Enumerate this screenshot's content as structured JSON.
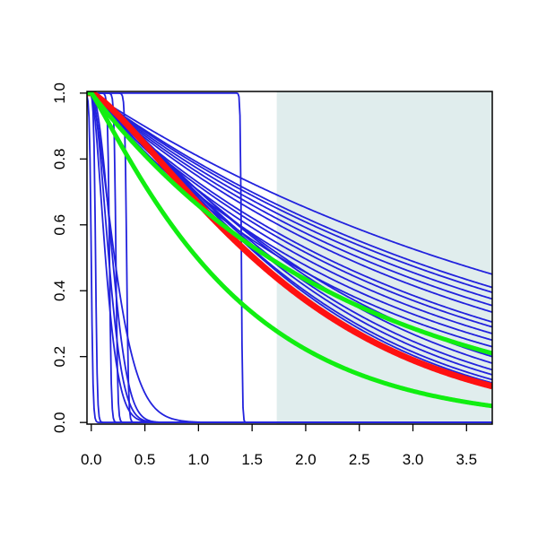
{
  "chart_data": {
    "type": "line",
    "title": "",
    "xlabel": "",
    "ylabel": "",
    "xlim": [
      -0.04,
      3.74
    ],
    "ylim": [
      -0.005,
      1.005
    ],
    "xticks": [
      "0.0",
      "0.5",
      "1.0",
      "1.5",
      "2.0",
      "2.5",
      "3.0",
      "3.5"
    ],
    "yticks": [
      "0.0",
      "0.2",
      "0.4",
      "0.6",
      "0.8",
      "1.0"
    ],
    "grid": false,
    "legend": "none",
    "shaded_region": {
      "x_from": 1.73,
      "x_to": 3.74,
      "color": "#e0eded"
    },
    "colors": {
      "blue": "#2222dd",
      "red": "#ff1111",
      "green": "#11ee11",
      "axis": "#000000"
    },
    "series": [
      {
        "color": "#2222dd",
        "kind": "exp",
        "values_at_x_end": 0.45
      },
      {
        "color": "#2222dd",
        "kind": "exp",
        "values_at_x_end": 0.41
      },
      {
        "color": "#2222dd",
        "kind": "exp",
        "values_at_x_end": 0.395
      },
      {
        "color": "#2222dd",
        "kind": "exp",
        "values_at_x_end": 0.375
      },
      {
        "color": "#2222dd",
        "kind": "exp",
        "values_at_x_end": 0.355
      },
      {
        "color": "#2222dd",
        "kind": "exp",
        "values_at_x_end": 0.335
      },
      {
        "color": "#2222dd",
        "kind": "exp",
        "values_at_x_end": 0.305
      },
      {
        "color": "#2222dd",
        "kind": "exp",
        "values_at_x_end": 0.29
      },
      {
        "color": "#2222dd",
        "kind": "exp",
        "values_at_x_end": 0.27
      },
      {
        "color": "#2222dd",
        "kind": "exp",
        "values_at_x_end": 0.25
      },
      {
        "color": "#2222dd",
        "kind": "exp",
        "values_at_x_end": 0.23
      },
      {
        "color": "#2222dd",
        "kind": "weib",
        "values_at_x_end": 0.2,
        "shape": 1.15
      },
      {
        "color": "#2222dd",
        "kind": "weib",
        "values_at_x_end": 0.18,
        "shape": 1.2
      },
      {
        "color": "#2222dd",
        "kind": "weib",
        "values_at_x_end": 0.16,
        "shape": 1.22
      },
      {
        "color": "#2222dd",
        "kind": "weib",
        "values_at_x_end": 0.145,
        "shape": 1.25
      },
      {
        "color": "#2222dd",
        "kind": "weib",
        "values_at_x_end": 0.13,
        "shape": 1.27
      },
      {
        "color": "#2222dd",
        "kind": "weib",
        "values_at_x_end": 0.12,
        "shape": 1.3
      },
      {
        "color": "#2222dd",
        "kind": "fast",
        "rate": 6,
        "shape": 1.6
      },
      {
        "color": "#2222dd",
        "kind": "fast",
        "rate": 5,
        "shape": 1.8
      },
      {
        "color": "#2222dd",
        "kind": "fast",
        "rate": 4.2,
        "shape": 2.0
      },
      {
        "color": "#2222dd",
        "kind": "fast",
        "rate": 3.6,
        "shape": 1.5
      },
      {
        "color": "#2222dd",
        "kind": "drop",
        "x_at": 0.0
      },
      {
        "color": "#2222dd",
        "kind": "drop",
        "x_at": 0.04
      },
      {
        "color": "#2222dd",
        "kind": "drop",
        "x_at": 0.17
      },
      {
        "color": "#2222dd",
        "kind": "drop",
        "x_at": 0.23
      },
      {
        "color": "#2222dd",
        "kind": "drop",
        "x_at": 0.33
      },
      {
        "color": "#2222dd",
        "kind": "step",
        "x_at": 1.4
      },
      {
        "color": "#ff1111",
        "kind": "weib",
        "values_at_x_end": 0.11,
        "shape": 1.28,
        "width": 7
      },
      {
        "color": "#11ee11",
        "kind": "exp",
        "values_at_x_end": 0.21,
        "width": 5
      },
      {
        "color": "#11ee11",
        "kind": "weib",
        "values_at_x_end": 0.05,
        "shape": 1.1,
        "width": 5
      }
    ]
  }
}
